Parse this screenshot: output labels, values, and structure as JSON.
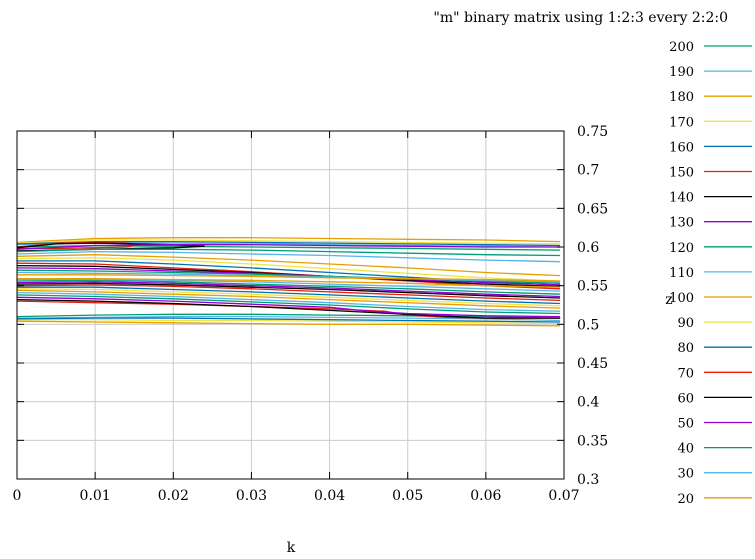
{
  "chart_data": {
    "type": "line",
    "title": "\"m\" binary matrix using 1:2:3  every 2:2:0",
    "xlabel": "k",
    "ylabel": "z",
    "xlim": [
      0,
      0.07
    ],
    "ylim": [
      0.3,
      0.75
    ],
    "x_ticks": [
      "0",
      "0.01",
      "0.02",
      "0.03",
      "0.04",
      "0.05",
      "0.06",
      "0.07"
    ],
    "y_ticks": [
      "0.3",
      "0.35",
      "0.4",
      "0.45",
      "0.5",
      "0.55",
      "0.6",
      "0.65",
      "0.7",
      "0.75"
    ],
    "grid": true,
    "legend_position": "right",
    "series": [
      {
        "name": "200",
        "color": "#009e73",
        "upper": {
          "x": [
            0.0,
            0.01,
            0.02,
            0.03,
            0.04,
            0.05,
            0.06,
            0.0695
          ],
          "y": [
            0.6,
            0.602,
            0.601,
            0.6,
            0.599,
            0.598,
            0.597,
            0.596
          ]
        },
        "lower": {
          "x": [
            0.0,
            0.01,
            0.02,
            0.03,
            0.04,
            0.05,
            0.06,
            0.0695
          ],
          "y": [
            0.51,
            0.512,
            0.513,
            0.513,
            0.512,
            0.511,
            0.51,
            0.508
          ]
        }
      },
      {
        "name": "190",
        "color": "#56b4e9",
        "upper": {
          "x": [
            0.0,
            0.01,
            0.02,
            0.03,
            0.04,
            0.05,
            0.06,
            0.0695
          ],
          "y": [
            0.603,
            0.606,
            0.605,
            0.604,
            0.603,
            0.602,
            0.601,
            0.6
          ]
        },
        "lower": {
          "x": [
            0.0,
            0.01,
            0.02,
            0.03,
            0.04,
            0.05,
            0.06,
            0.0695
          ],
          "y": [
            0.508,
            0.509,
            0.51,
            0.51,
            0.509,
            0.508,
            0.507,
            0.505
          ]
        }
      },
      {
        "name": "180",
        "color": "#e69f00",
        "upper": {
          "x": [
            0.0,
            0.01,
            0.02,
            0.03,
            0.04,
            0.05,
            0.06,
            0.0695
          ],
          "y": [
            0.606,
            0.611,
            0.612,
            0.612,
            0.611,
            0.61,
            0.609,
            0.607
          ]
        },
        "lower": {
          "x": [
            0.0,
            0.01,
            0.02,
            0.03,
            0.04,
            0.05,
            0.06,
            0.0695
          ],
          "y": [
            0.504,
            0.503,
            0.502,
            0.501,
            0.5,
            0.5,
            0.499,
            0.498
          ]
        }
      },
      {
        "name": "170",
        "color": "#f0e442",
        "upper": {
          "x": [
            0.0,
            0.01,
            0.02,
            0.03,
            0.04,
            0.05,
            0.06,
            0.0695
          ],
          "y": [
            0.605,
            0.609,
            0.609,
            0.608,
            0.607,
            0.606,
            0.605,
            0.604
          ]
        },
        "lower": {
          "x": [
            0.0,
            0.01,
            0.02,
            0.03,
            0.04,
            0.05,
            0.06,
            0.0695
          ],
          "y": [
            0.506,
            0.506,
            0.505,
            0.505,
            0.504,
            0.503,
            0.502,
            0.501
          ]
        }
      },
      {
        "name": "160",
        "color": "#0072b2",
        "upper": {
          "x": [
            0.0,
            0.01,
            0.02,
            0.03,
            0.04,
            0.05,
            0.06,
            0.0695
          ],
          "y": [
            0.604,
            0.607,
            0.607,
            0.606,
            0.605,
            0.604,
            0.603,
            0.602
          ]
        },
        "lower": {
          "x": [
            0.0,
            0.01,
            0.02,
            0.03,
            0.04,
            0.05,
            0.06,
            0.0695
          ],
          "y": [
            0.507,
            0.508,
            0.508,
            0.507,
            0.506,
            0.505,
            0.504,
            0.503
          ]
        }
      },
      {
        "name": "150",
        "color": "#e51e10",
        "upper": {
          "x": [
            0.0,
            0.005,
            0.01,
            0.014,
            0.0155,
            0.014,
            0.01,
            0.005,
            0.0
          ],
          "y": [
            0.6,
            0.605,
            0.606,
            0.605,
            0.603,
            0.6,
            0.599,
            0.598,
            0.598
          ]
        },
        "lower": {
          "x": [
            0.0,
            0.01,
            0.02,
            0.03,
            0.04,
            0.047,
            0.05,
            0.055,
            0.06,
            0.0695
          ],
          "y": [
            0.53,
            0.528,
            0.526,
            0.523,
            0.52,
            0.517,
            0.512,
            0.509,
            0.508,
            0.508
          ]
        }
      },
      {
        "name": "140",
        "color": "#000000",
        "upper": {
          "x": [
            0.0,
            0.005,
            0.01,
            0.015,
            0.02,
            0.024,
            0.02,
            0.015,
            0.01,
            0.005,
            0.0
          ],
          "y": [
            0.599,
            0.604,
            0.605,
            0.604,
            0.603,
            0.601,
            0.599,
            0.598,
            0.597,
            0.596,
            0.595
          ]
        },
        "lower": {
          "x": [
            0.0,
            0.01,
            0.02,
            0.03,
            0.04,
            0.05,
            0.06,
            0.0695
          ],
          "y": [
            0.532,
            0.53,
            0.527,
            0.523,
            0.518,
            0.513,
            0.508,
            0.508
          ]
        }
      },
      {
        "name": "130",
        "color": "#9400d3",
        "upper": {
          "x": [
            0.0,
            0.01,
            0.02,
            0.03,
            0.04,
            0.05,
            0.06,
            0.0695
          ],
          "y": [
            0.597,
            0.602,
            0.603,
            0.603,
            0.602,
            0.601,
            0.6,
            0.6
          ]
        },
        "lower": {
          "x": [
            0.0,
            0.01,
            0.02,
            0.03,
            0.04,
            0.045,
            0.05,
            0.06,
            0.0695
          ],
          "y": [
            0.535,
            0.533,
            0.53,
            0.526,
            0.522,
            0.517,
            0.514,
            0.511,
            0.51
          ]
        }
      },
      {
        "name": "120",
        "color": "#009e73",
        "upper": {
          "x": [
            0.0,
            0.01,
            0.02,
            0.03,
            0.04,
            0.05,
            0.06,
            0.0695
          ],
          "y": [
            0.594,
            0.597,
            0.597,
            0.596,
            0.594,
            0.592,
            0.59,
            0.589
          ]
        },
        "lower": {
          "x": [
            0.0,
            0.01,
            0.02,
            0.03,
            0.04,
            0.05,
            0.06,
            0.0695
          ],
          "y": [
            0.538,
            0.536,
            0.533,
            0.529,
            0.525,
            0.52,
            0.516,
            0.514
          ]
        }
      },
      {
        "name": "110",
        "color": "#56b4e9",
        "upper": {
          "x": [
            0.0,
            0.01,
            0.02,
            0.03,
            0.04,
            0.05,
            0.06,
            0.0695
          ],
          "y": [
            0.591,
            0.594,
            0.593,
            0.591,
            0.589,
            0.586,
            0.583,
            0.581
          ]
        },
        "lower": {
          "x": [
            0.0,
            0.01,
            0.02,
            0.03,
            0.04,
            0.05,
            0.06,
            0.0695
          ],
          "y": [
            0.541,
            0.539,
            0.536,
            0.532,
            0.528,
            0.523,
            0.519,
            0.517
          ]
        }
      },
      {
        "name": "100",
        "color": "#e69f00",
        "upper": {
          "x": [
            0.0,
            0.01,
            0.02,
            0.03,
            0.04,
            0.05,
            0.06,
            0.0695
          ],
          "y": [
            0.588,
            0.59,
            0.587,
            0.583,
            0.578,
            0.573,
            0.567,
            0.563
          ]
        },
        "lower": {
          "x": [
            0.0,
            0.01,
            0.02,
            0.03,
            0.04,
            0.05,
            0.06,
            0.0695
          ],
          "y": [
            0.544,
            0.542,
            0.539,
            0.536,
            0.532,
            0.528,
            0.524,
            0.521
          ]
        }
      },
      {
        "name": "90",
        "color": "#f0e442",
        "upper": {
          "x": [
            0.0,
            0.01,
            0.02,
            0.03,
            0.04,
            0.05,
            0.06,
            0.0695
          ],
          "y": [
            0.585,
            0.586,
            0.583,
            0.578,
            0.572,
            0.566,
            0.56,
            0.556
          ]
        },
        "lower": {
          "x": [
            0.0,
            0.01,
            0.02,
            0.03,
            0.04,
            0.05,
            0.06,
            0.0695
          ],
          "y": [
            0.546,
            0.545,
            0.542,
            0.539,
            0.535,
            0.531,
            0.527,
            0.524
          ]
        }
      },
      {
        "name": "80",
        "color": "#0072b2",
        "upper": {
          "x": [
            0.0,
            0.01,
            0.02,
            0.03,
            0.04,
            0.05,
            0.06,
            0.0695
          ],
          "y": [
            0.582,
            0.582,
            0.578,
            0.573,
            0.567,
            0.561,
            0.555,
            0.551
          ]
        },
        "lower": {
          "x": [
            0.0,
            0.01,
            0.02,
            0.03,
            0.04,
            0.05,
            0.06,
            0.0695
          ],
          "y": [
            0.548,
            0.548,
            0.545,
            0.542,
            0.538,
            0.534,
            0.53,
            0.527
          ]
        }
      },
      {
        "name": "70",
        "color": "#e51e10",
        "upper": {
          "x": [
            0.0,
            0.01,
            0.02,
            0.03,
            0.04,
            0.05,
            0.06,
            0.0695
          ],
          "y": [
            0.579,
            0.578,
            0.573,
            0.568,
            0.562,
            0.556,
            0.55,
            0.546
          ]
        },
        "lower": {
          "x": [
            0.0,
            0.01,
            0.02,
            0.03,
            0.04,
            0.05,
            0.06,
            0.0695
          ],
          "y": [
            0.55,
            0.551,
            0.549,
            0.546,
            0.542,
            0.538,
            0.534,
            0.531
          ]
        }
      },
      {
        "name": "60",
        "color": "#000000",
        "upper": {
          "x": [
            0.0,
            0.01,
            0.02,
            0.03,
            0.04,
            0.05,
            0.06,
            0.0695
          ],
          "y": [
            0.576,
            0.575,
            0.571,
            0.567,
            0.562,
            0.557,
            0.552,
            0.549
          ]
        },
        "lower": {
          "x": [
            0.0,
            0.01,
            0.02,
            0.03,
            0.04,
            0.05,
            0.06,
            0.0695
          ],
          "y": [
            0.552,
            0.553,
            0.551,
            0.548,
            0.545,
            0.541,
            0.537,
            0.534
          ]
        }
      },
      {
        "name": "50",
        "color": "#9400d3",
        "upper": {
          "x": [
            0.0,
            0.01,
            0.02,
            0.03,
            0.04,
            0.05,
            0.06,
            0.0695
          ],
          "y": [
            0.573,
            0.572,
            0.569,
            0.566,
            0.562,
            0.558,
            0.554,
            0.551
          ]
        },
        "lower": {
          "x": [
            0.0,
            0.01,
            0.02,
            0.03,
            0.04,
            0.05,
            0.06,
            0.0695
          ],
          "y": [
            0.554,
            0.555,
            0.553,
            0.55,
            0.547,
            0.543,
            0.539,
            0.536
          ]
        }
      },
      {
        "name": "40",
        "color": "#009e73",
        "upper": {
          "x": [
            0.0,
            0.01,
            0.02,
            0.03,
            0.04,
            0.05,
            0.06,
            0.0695
          ],
          "y": [
            0.57,
            0.569,
            0.567,
            0.565,
            0.562,
            0.559,
            0.556,
            0.553
          ]
        },
        "lower": {
          "x": [
            0.0,
            0.01,
            0.02,
            0.03,
            0.04,
            0.05,
            0.06,
            0.0695
          ],
          "y": [
            0.556,
            0.557,
            0.555,
            0.552,
            0.549,
            0.546,
            0.542,
            0.539
          ]
        }
      },
      {
        "name": "30",
        "color": "#56b4e9",
        "upper": {
          "x": [
            0.0,
            0.01,
            0.02,
            0.03,
            0.04,
            0.05,
            0.06,
            0.0695
          ],
          "y": [
            0.567,
            0.566,
            0.565,
            0.563,
            0.561,
            0.559,
            0.557,
            0.555
          ]
        },
        "lower": {
          "x": [
            0.0,
            0.01,
            0.02,
            0.03,
            0.04,
            0.05,
            0.06,
            0.0695
          ],
          "y": [
            0.558,
            0.558,
            0.557,
            0.555,
            0.552,
            0.549,
            0.546,
            0.543
          ]
        }
      },
      {
        "name": "20",
        "color": "#e69f00",
        "upper": {
          "x": [
            0.0,
            0.01,
            0.02,
            0.03,
            0.04,
            0.05,
            0.06,
            0.0695
          ],
          "y": [
            0.564,
            0.564,
            0.563,
            0.562,
            0.56,
            0.559,
            0.558,
            0.556
          ]
        },
        "lower": {
          "x": [
            0.0,
            0.01,
            0.02,
            0.03,
            0.04,
            0.05,
            0.06,
            0.0695
          ],
          "y": [
            0.559,
            0.559,
            0.558,
            0.557,
            0.555,
            0.553,
            0.55,
            0.548
          ]
        }
      }
    ]
  }
}
